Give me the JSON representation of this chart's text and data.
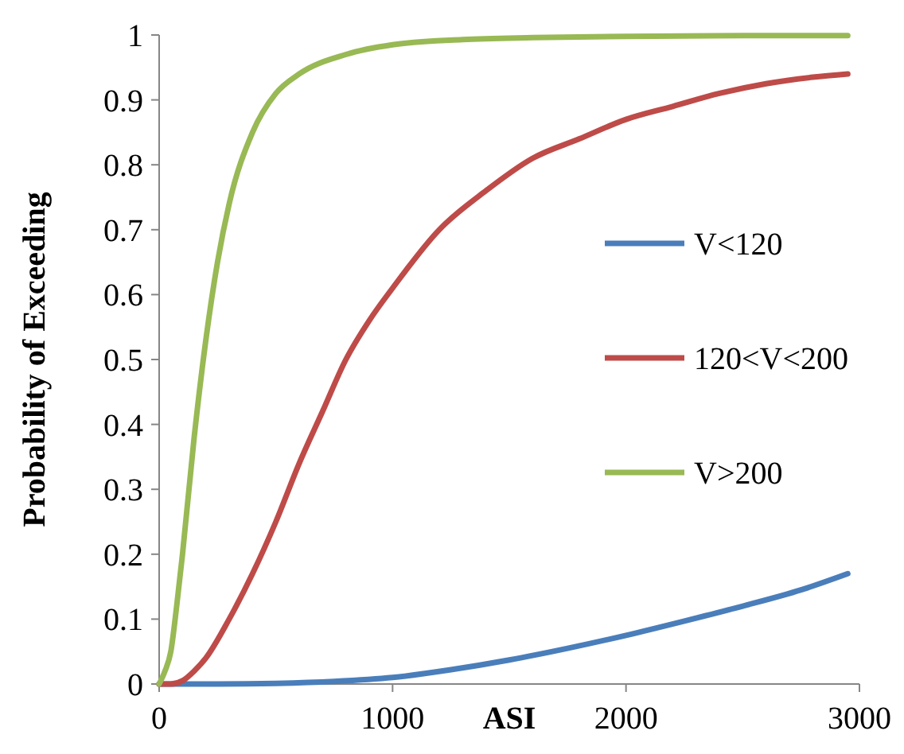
{
  "chart_data": {
    "type": "line",
    "xlabel": "ASI",
    "ylabel": "Probability of Exceeding",
    "xlim": [
      0,
      3000
    ],
    "xticks": [
      0,
      1000,
      2000,
      3000
    ],
    "ylim": [
      0,
      1
    ],
    "yticks": [
      0,
      0.1,
      0.2,
      0.3,
      0.4,
      0.5,
      0.6,
      0.7,
      0.8,
      0.9,
      1
    ],
    "grid": false,
    "legend": "right",
    "line_style": "solid",
    "series": [
      {
        "name": "V<120",
        "color": "#4a7ebb",
        "x": [
          0,
          250,
          500,
          750,
          1000,
          1250,
          1500,
          1750,
          2000,
          2250,
          2500,
          2750,
          2950
        ],
        "values": [
          0,
          0,
          0.001,
          0.004,
          0.01,
          0.022,
          0.037,
          0.055,
          0.075,
          0.097,
          0.12,
          0.145,
          0.17
        ]
      },
      {
        "name": "120<V<200",
        "color": "#be4b48",
        "x": [
          0,
          50,
          100,
          150,
          200,
          300,
          400,
          500,
          600,
          700,
          800,
          900,
          1000,
          1200,
          1400,
          1600,
          1800,
          2000,
          2200,
          2400,
          2600,
          2800,
          2950
        ],
        "values": [
          0,
          0,
          0.005,
          0.02,
          0.04,
          0.1,
          0.17,
          0.25,
          0.34,
          0.42,
          0.5,
          0.56,
          0.61,
          0.7,
          0.76,
          0.81,
          0.84,
          0.87,
          0.89,
          0.91,
          0.925,
          0.935,
          0.94
        ]
      },
      {
        "name": "V>200",
        "color": "#98b954",
        "x": [
          0,
          25,
          50,
          75,
          100,
          150,
          200,
          250,
          300,
          400,
          500,
          600,
          800,
          1000,
          1300,
          1600,
          2000,
          2500,
          2950
        ],
        "values": [
          0,
          0.02,
          0.05,
          0.12,
          0.2,
          0.38,
          0.53,
          0.65,
          0.74,
          0.85,
          0.91,
          0.94,
          0.97,
          0.985,
          0.993,
          0.996,
          0.998,
          0.999,
          0.999
        ]
      }
    ]
  }
}
